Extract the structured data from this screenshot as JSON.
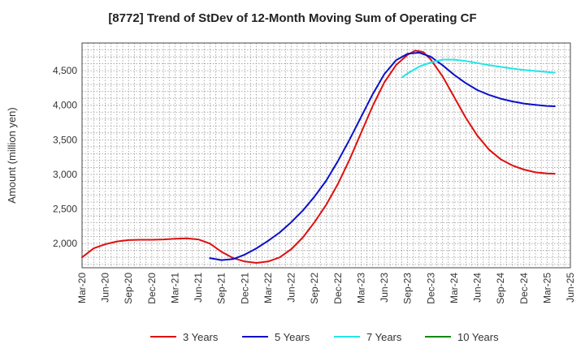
{
  "chart_data": {
    "type": "line",
    "title": "[8772]  Trend of StDev of 12-Month Moving Sum of Operating CF",
    "xlabel": "",
    "ylabel": "Amount (million yen)",
    "ylim": [
      1650,
      4900
    ],
    "yticks": [
      2000,
      2500,
      3000,
      3500,
      4000,
      4500
    ],
    "ytick_labels": [
      "2,000",
      "2,500",
      "3,000",
      "3,500",
      "4,000",
      "4,500"
    ],
    "x_categories": [
      "Mar-20",
      "Jun-20",
      "Sep-20",
      "Dec-20",
      "Mar-21",
      "Jun-21",
      "Sep-21",
      "Dec-21",
      "Mar-22",
      "Jun-22",
      "Sep-22",
      "Dec-22",
      "Mar-23",
      "Jun-23",
      "Sep-23",
      "Dec-23",
      "Mar-24",
      "Jun-24",
      "Sep-24",
      "Dec-24",
      "Mar-25",
      "Jun-25"
    ],
    "grid": true,
    "legend_position": "bottom",
    "series": [
      {
        "name": "3 Years",
        "color": "#dd1111",
        "points": [
          [
            0,
            1800
          ],
          [
            0.5,
            1930
          ],
          [
            1,
            1990
          ],
          [
            1.5,
            2030
          ],
          [
            2,
            2050
          ],
          [
            2.5,
            2055
          ],
          [
            3,
            2055
          ],
          [
            3.5,
            2060
          ],
          [
            4,
            2070
          ],
          [
            4.5,
            2075
          ],
          [
            5,
            2060
          ],
          [
            5.5,
            2000
          ],
          [
            6,
            1880
          ],
          [
            6.5,
            1790
          ],
          [
            7,
            1740
          ],
          [
            7.5,
            1720
          ],
          [
            8,
            1740
          ],
          [
            8.5,
            1800
          ],
          [
            9,
            1920
          ],
          [
            9.5,
            2090
          ],
          [
            10,
            2310
          ],
          [
            10.5,
            2560
          ],
          [
            11,
            2860
          ],
          [
            11.5,
            3210
          ],
          [
            12,
            3600
          ],
          [
            12.5,
            3990
          ],
          [
            13,
            4330
          ],
          [
            13.5,
            4580
          ],
          [
            14,
            4730
          ],
          [
            14.33,
            4790
          ],
          [
            14.67,
            4770
          ],
          [
            15,
            4660
          ],
          [
            15.5,
            4420
          ],
          [
            16,
            4120
          ],
          [
            16.5,
            3820
          ],
          [
            17,
            3560
          ],
          [
            17.5,
            3360
          ],
          [
            18,
            3220
          ],
          [
            18.5,
            3130
          ],
          [
            19,
            3070
          ],
          [
            19.5,
            3030
          ],
          [
            20,
            3015
          ],
          [
            20.33,
            3010
          ]
        ]
      },
      {
        "name": "5 Years",
        "color": "#0a10c8",
        "points": [
          [
            5.5,
            1790
          ],
          [
            6,
            1760
          ],
          [
            6.5,
            1775
          ],
          [
            7,
            1840
          ],
          [
            7.5,
            1930
          ],
          [
            8,
            2040
          ],
          [
            8.5,
            2160
          ],
          [
            9,
            2310
          ],
          [
            9.5,
            2480
          ],
          [
            10,
            2680
          ],
          [
            10.5,
            2910
          ],
          [
            11,
            3190
          ],
          [
            11.5,
            3500
          ],
          [
            12,
            3830
          ],
          [
            12.5,
            4160
          ],
          [
            13,
            4450
          ],
          [
            13.5,
            4650
          ],
          [
            14,
            4745
          ],
          [
            14.5,
            4760
          ],
          [
            15,
            4700
          ],
          [
            15.5,
            4580
          ],
          [
            16,
            4440
          ],
          [
            16.5,
            4320
          ],
          [
            17,
            4220
          ],
          [
            17.5,
            4150
          ],
          [
            18,
            4095
          ],
          [
            18.5,
            4055
          ],
          [
            19,
            4025
          ],
          [
            19.5,
            4005
          ],
          [
            20,
            3990
          ],
          [
            20.33,
            3985
          ]
        ]
      },
      {
        "name": "7 Years",
        "color": "#22e6e6",
        "points": [
          [
            13.75,
            4400
          ],
          [
            14,
            4460
          ],
          [
            14.5,
            4560
          ],
          [
            15,
            4620
          ],
          [
            15.5,
            4660
          ],
          [
            16,
            4660
          ],
          [
            16.5,
            4640
          ],
          [
            17,
            4610
          ],
          [
            17.5,
            4580
          ],
          [
            18,
            4555
          ],
          [
            18.5,
            4530
          ],
          [
            19,
            4510
          ],
          [
            19.5,
            4495
          ],
          [
            20,
            4480
          ],
          [
            20.33,
            4470
          ]
        ]
      },
      {
        "name": "10 Years",
        "color": "#118811",
        "points": []
      }
    ]
  }
}
